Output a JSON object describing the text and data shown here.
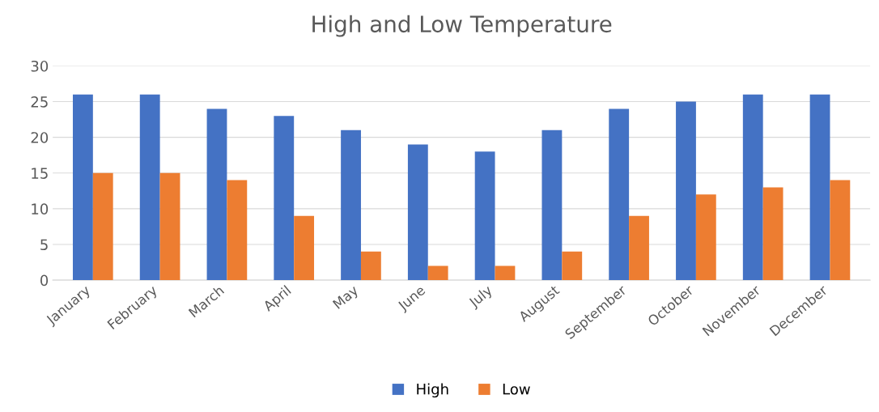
{
  "chart_data": {
    "type": "bar",
    "title": "High and Low Temperature",
    "categories": [
      "January",
      "February",
      "March",
      "April",
      "May",
      "June",
      "July",
      "August",
      "September",
      "October",
      "November",
      "December"
    ],
    "series": [
      {
        "name": "High",
        "color": "#4472c4",
        "values": [
          26,
          26,
          24,
          23,
          21,
          19,
          18,
          21,
          24,
          25,
          26,
          26
        ]
      },
      {
        "name": "Low",
        "color": "#ed7d31",
        "values": [
          15,
          15,
          14,
          9,
          4,
          2,
          2,
          4,
          9,
          12,
          13,
          14
        ]
      }
    ],
    "ylim": [
      0,
      30
    ],
    "yticks": [
      0,
      5,
      10,
      15,
      20,
      25,
      30
    ],
    "grid": "y",
    "legend": "bottom"
  }
}
